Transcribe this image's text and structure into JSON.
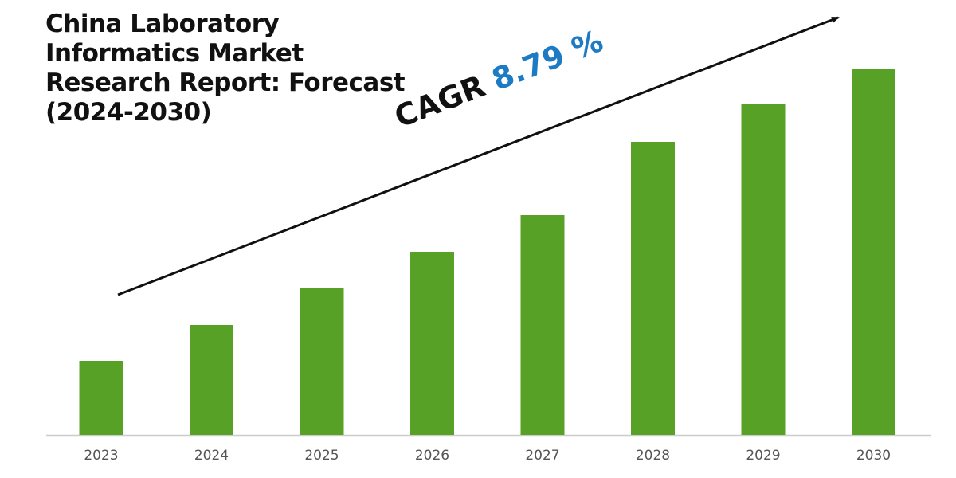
{
  "chart_data": {
    "type": "bar",
    "title": "China Laboratory Informatics Market Research Report: Forecast (2024-2030)",
    "title_lines": [
      "China Laboratory",
      "Informatics Market",
      "Research Report: Forecast",
      "(2024-2030)"
    ],
    "annotation": {
      "label": "CAGR",
      "value": "8.79 %"
    },
    "categories": [
      "2023",
      "2024",
      "2025",
      "2026",
      "2027",
      "2028",
      "2029",
      "2030"
    ],
    "values": [
      93,
      138,
      185,
      230,
      276,
      368,
      415,
      460
    ],
    "value_note": "relative bar heights; no y-axis scale shown",
    "xlabel": "",
    "ylabel": "",
    "ylim": [
      0,
      500
    ],
    "grid": false,
    "legend": "none",
    "colors": {
      "bar": "#57a226",
      "cagr_value": "#1d7bc4",
      "axis": "#cccccc",
      "tick_label": "#555555"
    }
  }
}
